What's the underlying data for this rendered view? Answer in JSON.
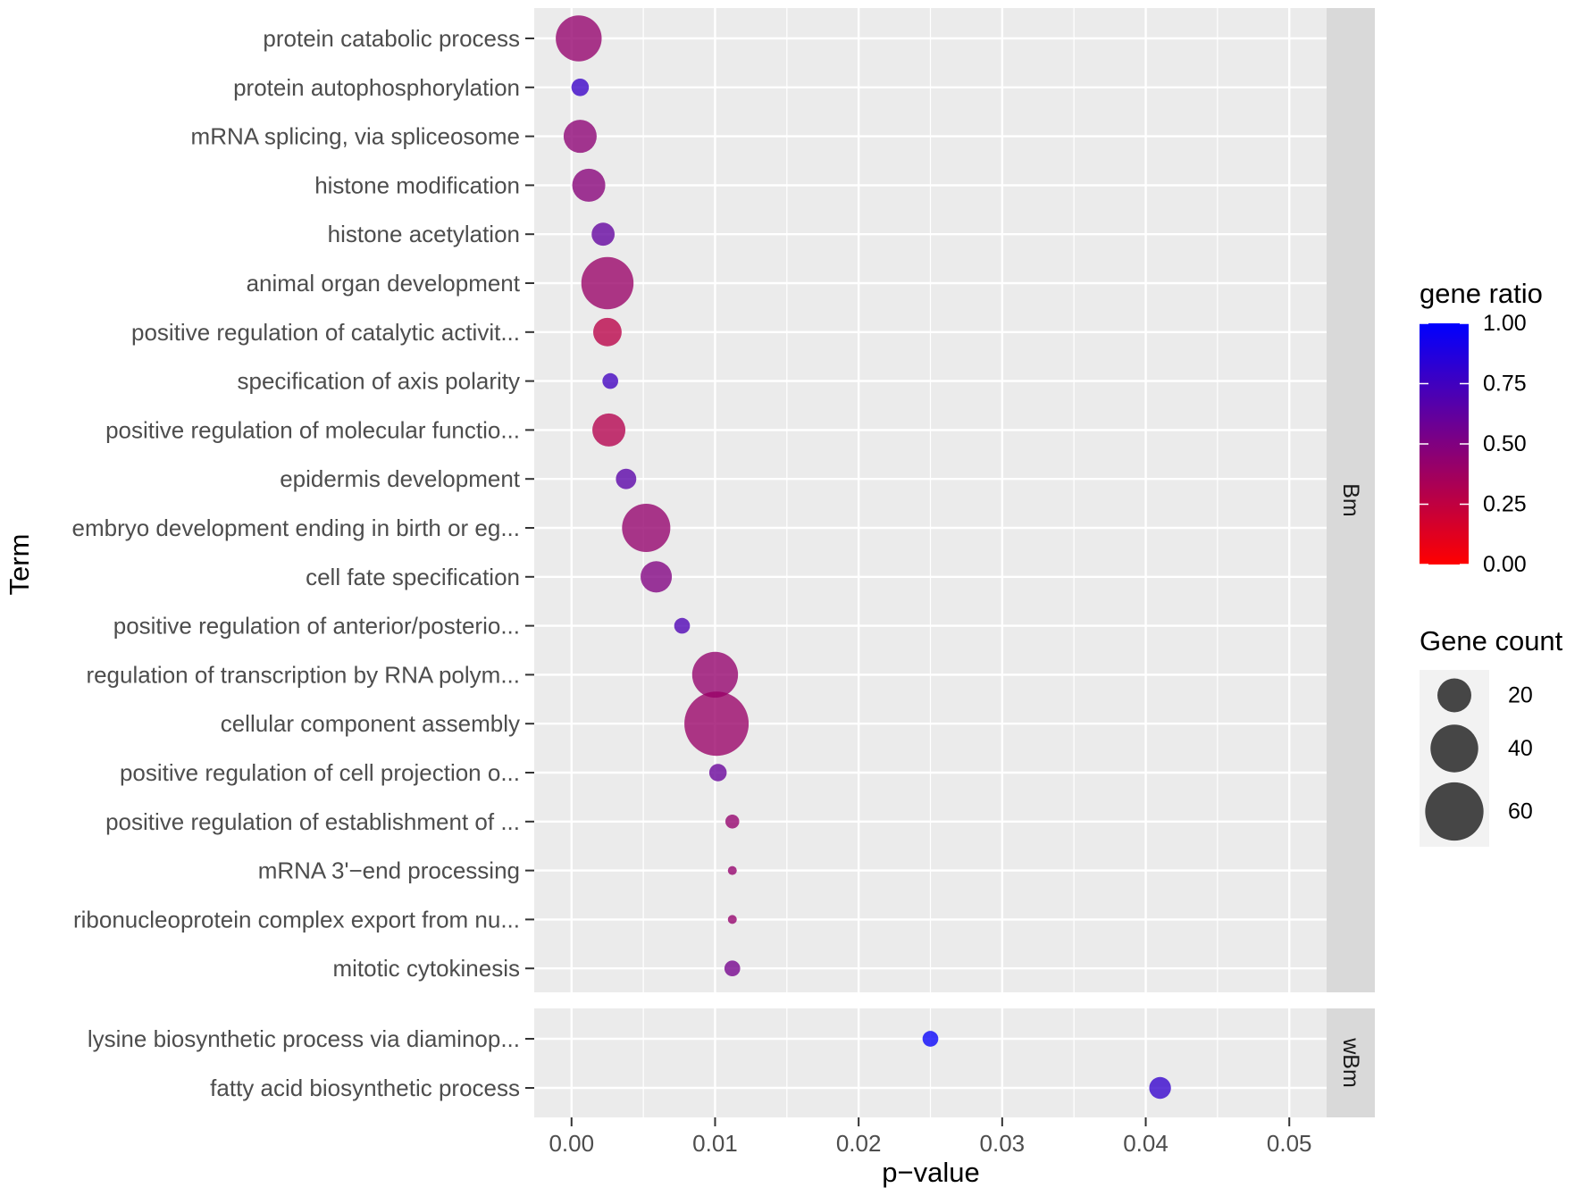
{
  "chart_data": {
    "type": "scatter",
    "xlabel": "p−value",
    "ylabel": "Term",
    "xlim": [
      -0.0026,
      0.0526
    ],
    "xticks": [
      "0.00",
      "0.01",
      "0.02",
      "0.03",
      "0.04",
      "0.05"
    ],
    "xtick_values": [
      0,
      0.01,
      0.02,
      0.03,
      0.04,
      0.05
    ],
    "grid": true,
    "facets": [
      {
        "label": "Bm",
        "points": [
          {
            "term": "protein catabolic process",
            "p": 0.0005,
            "count": 37,
            "ratio": 0.42
          },
          {
            "term": "protein autophosphorylation",
            "p": 0.0006,
            "count": 5,
            "ratio": 0.78
          },
          {
            "term": "mRNA splicing, via spliceosome",
            "p": 0.0006,
            "count": 19,
            "ratio": 0.45
          },
          {
            "term": "histone modification",
            "p": 0.0012,
            "count": 19,
            "ratio": 0.47
          },
          {
            "term": "histone acetylation",
            "p": 0.0022,
            "count": 9,
            "ratio": 0.62
          },
          {
            "term": "animal organ development",
            "p": 0.0025,
            "count": 48,
            "ratio": 0.4
          },
          {
            "term": "positive regulation of catalytic activit...",
            "p": 0.0025,
            "count": 14,
            "ratio": 0.28
          },
          {
            "term": "specification of axis polarity",
            "p": 0.0027,
            "count": 4,
            "ratio": 0.75
          },
          {
            "term": "positive regulation of molecular functio...",
            "p": 0.0026,
            "count": 19,
            "ratio": 0.3
          },
          {
            "term": "epidermis development",
            "p": 0.0038,
            "count": 7,
            "ratio": 0.65
          },
          {
            "term": "embryo development ending in birth or eg...",
            "p": 0.0052,
            "count": 41,
            "ratio": 0.42
          },
          {
            "term": "cell fate specification",
            "p": 0.0059,
            "count": 17,
            "ratio": 0.5
          },
          {
            "term": "positive regulation of anterior/posterio...",
            "p": 0.0077,
            "count": 4,
            "ratio": 0.7
          },
          {
            "term": "regulation of transcription by RNA polym...",
            "p": 0.01,
            "count": 37,
            "ratio": 0.42
          },
          {
            "term": "cellular component assembly",
            "p": 0.0101,
            "count": 73,
            "ratio": 0.4
          },
          {
            "term": "positive regulation of cell projection o...",
            "p": 0.0102,
            "count": 5,
            "ratio": 0.6
          },
          {
            "term": "positive regulation of establishment of ...",
            "p": 0.0112,
            "count": 3,
            "ratio": 0.42
          },
          {
            "term": "mRNA 3'−end processing",
            "p": 0.0112,
            "count": 1,
            "ratio": 0.42
          },
          {
            "term": "ribonucleoprotein complex export from nu...",
            "p": 0.0112,
            "count": 1,
            "ratio": 0.42
          },
          {
            "term": "mitotic cytokinesis",
            "p": 0.0112,
            "count": 4,
            "ratio": 0.55
          }
        ]
      },
      {
        "label": "wBm",
        "points": [
          {
            "term": "lysine biosynthetic process via diaminop...",
            "p": 0.025,
            "count": 4,
            "ratio": 0.98
          },
          {
            "term": "fatty acid biosynthetic process",
            "p": 0.041,
            "count": 8,
            "ratio": 0.8
          }
        ]
      }
    ],
    "color_legend": {
      "title": "gene ratio",
      "breaks": [
        "1.00",
        "0.75",
        "0.50",
        "0.25",
        "0.00"
      ],
      "break_values": [
        1,
        0.75,
        0.5,
        0.25,
        0
      ],
      "low_color": "#ff0000",
      "high_color": "#0000ff"
    },
    "size_legend": {
      "title": "Gene count",
      "breaks": [
        "20",
        "40",
        "60"
      ],
      "break_values": [
        20,
        40,
        60
      ]
    }
  },
  "colors": {
    "panel_bg": "#ebebeb",
    "grid_major": "#ffffff",
    "strip_bg": "#d9d9d9",
    "legend_key_bg": "#f2f2f2",
    "size_key_fill": "#333333"
  }
}
